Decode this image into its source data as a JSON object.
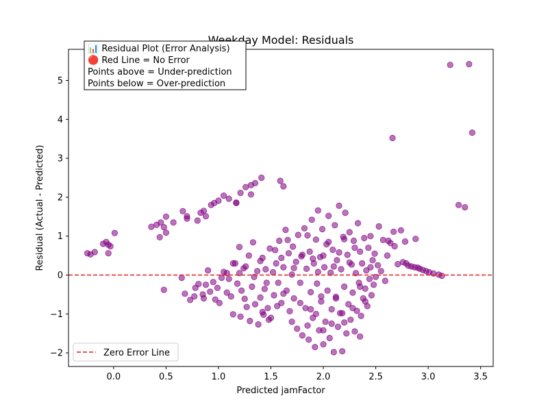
{
  "chart_data": {
    "type": "scatter",
    "title": "Weekday Model: Residuals",
    "xlabel": "Predicted jamFactor",
    "ylabel": "Residual (Actual - Predicted)",
    "xlim": [
      -0.43,
      3.62
    ],
    "ylim": [
      -2.35,
      5.8
    ],
    "xticks": [
      0.0,
      0.5,
      1.0,
      1.5,
      2.0,
      2.5,
      3.0,
      3.5
    ],
    "xtick_labels": [
      "0.0",
      "0.5",
      "1.0",
      "1.5",
      "2.0",
      "2.5",
      "3.0",
      "3.5"
    ],
    "yticks": [
      -2,
      -1,
      0,
      1,
      2,
      3,
      4,
      5
    ],
    "ytick_labels": [
      "−2",
      "−1",
      "0",
      "1",
      "2",
      "3",
      "4",
      "5"
    ],
    "grid": false,
    "point_color": "#800080",
    "point_opacity": 0.55,
    "zero_line": {
      "y": 0,
      "color": "#e41a1c",
      "style": "dashed",
      "label": "Zero Error Line"
    },
    "legend": {
      "placement": "lower-left",
      "entries": [
        "Zero Error Line"
      ]
    },
    "annotation": {
      "placement": "top-left",
      "lines": [
        "📊 Residual Plot (Error Analysis)",
        "🔴 Red Line = No Error",
        "Points above = Under-prediction",
        "Points below = Over-prediction"
      ]
    },
    "series": [
      {
        "points": [
          [
            -0.25,
            0.56
          ],
          [
            -0.22,
            0.53
          ],
          [
            -0.18,
            0.59
          ],
          [
            -0.1,
            0.8
          ],
          [
            -0.07,
            0.85
          ],
          [
            -0.05,
            0.78
          ],
          [
            -0.03,
            0.74
          ],
          [
            -0.05,
            0.56
          ],
          [
            0.01,
            1.08
          ],
          [
            0.36,
            1.24
          ],
          [
            0.41,
            1.29
          ],
          [
            0.45,
            1.35
          ],
          [
            0.48,
            1.23
          ],
          [
            0.5,
            1.09
          ],
          [
            0.44,
            0.97
          ],
          [
            0.5,
            1.5
          ],
          [
            0.57,
            1.35
          ],
          [
            0.66,
            1.64
          ],
          [
            0.7,
            1.51
          ],
          [
            0.7,
            1.45
          ],
          [
            0.8,
            1.4
          ],
          [
            0.83,
            1.6
          ],
          [
            0.86,
            1.65
          ],
          [
            0.88,
            1.51
          ],
          [
            0.93,
            1.8
          ],
          [
            0.96,
            1.85
          ],
          [
            1.0,
            1.91
          ],
          [
            1.05,
            2.04
          ],
          [
            1.1,
            1.96
          ],
          [
            1.17,
            1.86
          ],
          [
            1.17,
            1.85
          ],
          [
            1.21,
            2.11
          ],
          [
            1.26,
            2.26
          ],
          [
            1.31,
            2.31
          ],
          [
            1.35,
            2.36
          ],
          [
            1.31,
            2.07
          ],
          [
            1.41,
            2.5
          ],
          [
            1.59,
            2.42
          ],
          [
            1.62,
            2.28
          ],
          [
            0.48,
            -0.38
          ],
          [
            0.65,
            -0.07
          ],
          [
            0.68,
            -0.48
          ],
          [
            0.73,
            -0.64
          ],
          [
            0.77,
            -0.55
          ],
          [
            0.78,
            -0.33
          ],
          [
            0.81,
            -0.23
          ],
          [
            0.85,
            -0.5
          ],
          [
            0.86,
            -0.6
          ],
          [
            0.88,
            -0.25
          ],
          [
            0.9,
            0.12
          ],
          [
            0.92,
            -0.43
          ],
          [
            0.95,
            -0.18
          ],
          [
            0.97,
            -0.63
          ],
          [
            0.99,
            -0.33
          ],
          [
            1.01,
            -0.72
          ],
          [
            1.03,
            -0.07
          ],
          [
            1.05,
            0.08
          ],
          [
            1.08,
            -0.45
          ],
          [
            1.1,
            -0.1
          ],
          [
            1.12,
            -0.55
          ],
          [
            1.14,
            -1.01
          ],
          [
            1.16,
            0.3
          ],
          [
            1.18,
            -0.22
          ],
          [
            1.2,
            0.05
          ],
          [
            1.21,
            -1.07
          ],
          [
            1.22,
            -0.4
          ],
          [
            1.24,
            0.17
          ],
          [
            1.25,
            -0.61
          ],
          [
            1.27,
            -0.82
          ],
          [
            1.29,
            0.5
          ],
          [
            1.3,
            -1.18
          ],
          [
            1.32,
            -0.3
          ],
          [
            1.33,
            0.84
          ],
          [
            1.35,
            -0.75
          ],
          [
            1.37,
            0.1
          ],
          [
            1.38,
            -1.27
          ],
          [
            1.4,
            -0.58
          ],
          [
            1.42,
            0.44
          ],
          [
            1.43,
            -1.02
          ],
          [
            1.44,
            -0.36
          ],
          [
            1.45,
            0.15
          ],
          [
            1.47,
            -0.85
          ],
          [
            1.49,
            0.68
          ],
          [
            1.5,
            -1.1
          ],
          [
            1.52,
            0.07
          ],
          [
            1.53,
            -0.52
          ],
          [
            1.55,
            0.3
          ],
          [
            1.57,
            -0.2
          ],
          [
            1.58,
            0.88
          ],
          [
            1.6,
            -0.72
          ],
          [
            1.62,
            0.2
          ],
          [
            1.64,
            1.16
          ],
          [
            1.65,
            -0.4
          ],
          [
            1.67,
            0.56
          ],
          [
            1.68,
            -0.93
          ],
          [
            1.7,
            0.01
          ],
          [
            1.71,
            0.73
          ],
          [
            1.72,
            -0.6
          ],
          [
            1.74,
            0.34
          ],
          [
            1.75,
            -1.38
          ],
          [
            1.76,
            1.03
          ],
          [
            1.78,
            -0.2
          ],
          [
            1.79,
            0.48
          ],
          [
            1.8,
            -1.55
          ],
          [
            1.82,
            1.2
          ],
          [
            1.83,
            -0.85
          ],
          [
            1.84,
            0.16
          ],
          [
            1.86,
            -1.66
          ],
          [
            1.87,
            0.6
          ],
          [
            1.88,
            -0.44
          ],
          [
            1.89,
            1.42
          ],
          [
            1.9,
            -1.1
          ],
          [
            1.91,
            0.3
          ],
          [
            1.92,
            -1.85
          ],
          [
            1.93,
            0.91
          ],
          [
            1.94,
            -0.22
          ],
          [
            1.95,
            1.66
          ],
          [
            1.96,
            -1.42
          ],
          [
            1.97,
            0.46
          ],
          [
            1.98,
            -0.68
          ],
          [
            1.99,
            1.18
          ],
          [
            2.0,
            -1.78
          ],
          [
            2.01,
            0.2
          ],
          [
            2.02,
            -1.2
          ],
          [
            2.03,
            0.79
          ],
          [
            2.04,
            -0.4
          ],
          [
            2.05,
            1.52
          ],
          [
            2.06,
            -1.62
          ],
          [
            2.07,
            0.06
          ],
          [
            2.08,
            -0.88
          ],
          [
            2.09,
            0.65
          ],
          [
            2.1,
            -1.98
          ],
          [
            2.11,
            1.28
          ],
          [
            2.12,
            -0.56
          ],
          [
            2.13,
            0.38
          ],
          [
            2.14,
            -1.33
          ],
          [
            2.15,
            1.78
          ],
          [
            2.16,
            -0.98
          ],
          [
            2.17,
            0.15
          ],
          [
            2.18,
            -1.96
          ],
          [
            2.19,
            0.98
          ],
          [
            2.2,
            -0.3
          ],
          [
            2.21,
            1.6
          ],
          [
            2.22,
            -1.5
          ],
          [
            2.23,
            0.52
          ],
          [
            2.24,
            -0.75
          ],
          [
            2.25,
            1.1
          ],
          [
            2.26,
            -1.15
          ],
          [
            2.27,
            0.27
          ],
          [
            2.28,
            -0.45
          ],
          [
            2.29,
            0.88
          ],
          [
            2.3,
            -1.45
          ],
          [
            2.31,
            0.05
          ],
          [
            2.32,
            -0.92
          ],
          [
            2.33,
            1.33
          ],
          [
            2.34,
            -0.2
          ],
          [
            2.35,
            0.6
          ],
          [
            2.36,
            -1.05
          ],
          [
            2.37,
            0.3
          ],
          [
            2.38,
            -0.6
          ],
          [
            2.39,
            0.95
          ],
          [
            2.4,
            -0.35
          ],
          [
            2.41,
            0.12
          ],
          [
            2.42,
            -0.8
          ],
          [
            2.43,
            0.7
          ],
          [
            2.44,
            -0.1
          ],
          [
            2.45,
            1.0
          ],
          [
            2.46,
            -0.52
          ],
          [
            2.47,
            0.38
          ],
          [
            2.48,
            -0.25
          ],
          [
            2.49,
            0.55
          ],
          [
            2.5,
            -0.05
          ],
          [
            2.52,
            0.25
          ],
          [
            2.53,
            1.25
          ],
          [
            2.55,
            0.1
          ],
          [
            2.57,
            0.9
          ],
          [
            2.59,
            -0.15
          ],
          [
            2.61,
            0.5
          ],
          [
            2.62,
            0.88
          ],
          [
            2.64,
            0.82
          ],
          [
            2.67,
            1.11
          ],
          [
            2.68,
            0.74
          ],
          [
            2.71,
            0.28
          ],
          [
            2.74,
            1.15
          ],
          [
            2.76,
            0.33
          ],
          [
            2.78,
            0.86
          ],
          [
            2.79,
            0.3
          ],
          [
            2.81,
            0.24
          ],
          [
            2.84,
            0.22
          ],
          [
            2.87,
            0.2
          ],
          [
            2.88,
            0.93
          ],
          [
            2.9,
            0.19
          ],
          [
            2.92,
            0.16
          ],
          [
            2.95,
            0.13
          ],
          [
            2.98,
            0.1
          ],
          [
            3.01,
            0.07
          ],
          [
            3.05,
            0.04
          ],
          [
            3.1,
            0.01
          ],
          [
            3.13,
            -0.02
          ],
          [
            3.21,
            5.4
          ],
          [
            3.39,
            5.42
          ],
          [
            3.42,
            3.66
          ],
          [
            2.66,
            3.52
          ],
          [
            3.29,
            1.8
          ],
          [
            3.35,
            1.74
          ],
          [
            1.08,
            0.05
          ],
          [
            1.14,
            0.3
          ],
          [
            1.2,
            0.72
          ],
          [
            1.26,
            0.22
          ],
          [
            1.34,
            -0.05
          ],
          [
            1.4,
            0.36
          ],
          [
            1.46,
            -0.2
          ],
          [
            1.54,
            0.64
          ],
          [
            1.6,
            0.44
          ],
          [
            1.66,
            0.9
          ],
          [
            1.72,
            0.18
          ],
          [
            1.8,
            0.52
          ],
          [
            1.85,
            1.02
          ],
          [
            1.9,
            0.42
          ],
          [
            1.95,
            0.08
          ],
          [
            2.0,
            0.5
          ],
          [
            2.05,
            0.85
          ],
          [
            2.1,
            0.22
          ],
          [
            2.15,
            0.58
          ],
          [
            2.2,
            0.92
          ],
          [
            2.25,
            0.32
          ],
          [
            2.3,
            0.7
          ],
          [
            2.35,
            -0.3
          ],
          [
            2.4,
            -0.68
          ],
          [
            2.45,
            0.2
          ],
          [
            1.7,
            -1.2
          ],
          [
            1.78,
            -0.72
          ],
          [
            1.85,
            -1.3
          ],
          [
            1.93,
            -1.0
          ],
          [
            2.0,
            -1.42
          ],
          [
            2.08,
            -1.25
          ],
          [
            2.12,
            -0.6
          ],
          [
            2.2,
            -1.22
          ],
          [
            2.28,
            -0.85
          ],
          [
            2.35,
            -1.58
          ],
          [
            2.18,
            -0.98
          ],
          [
            1.98,
            -0.55
          ],
          [
            1.88,
            -0.88
          ],
          [
            1.62,
            -0.48
          ],
          [
            1.56,
            -0.8
          ],
          [
            1.48,
            -1.15
          ],
          [
            1.42,
            -0.95
          ]
        ]
      }
    ]
  }
}
